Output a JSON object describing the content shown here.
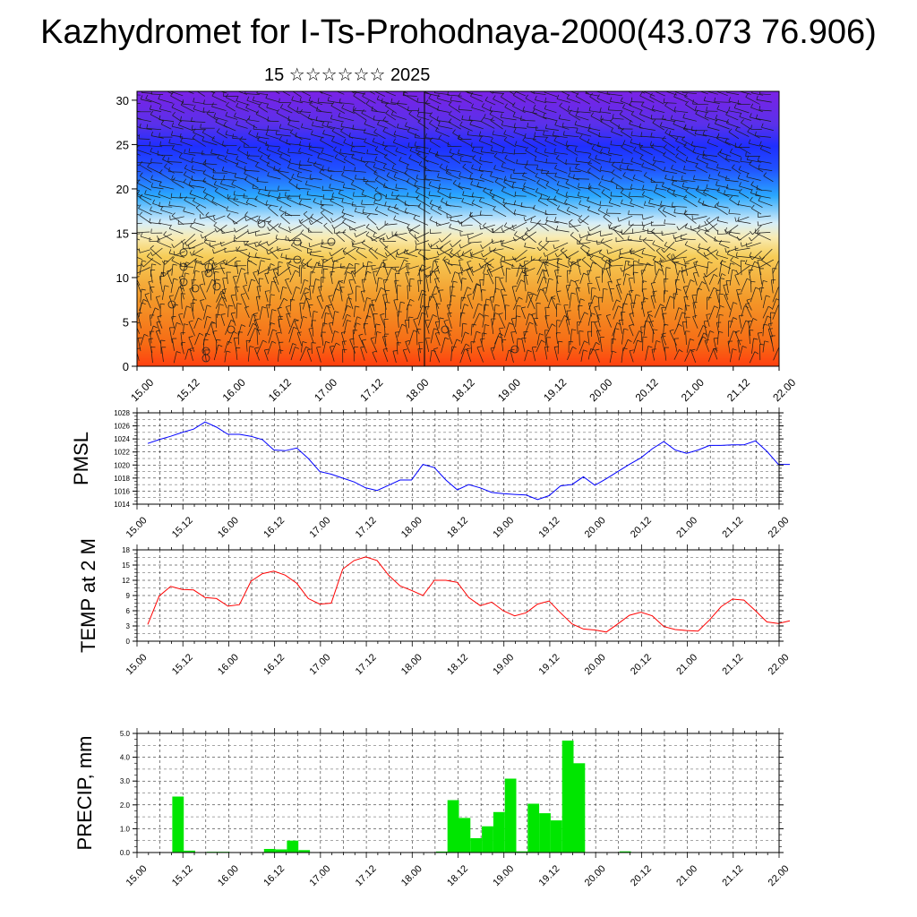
{
  "title": "Kazhydromet for I-Ts-Prohodnaya-2000(43.073 76.906)",
  "subtitle": "15 ☆☆☆☆☆☆ 2025",
  "colors": {
    "pmsl_line": "#0000ff",
    "temp_line": "#ff0000",
    "precip_bar": "#00e600",
    "upper_purple": "#7a22e6",
    "upper_blue": "#1f2fff",
    "mid_cyan": "#2aa8ff",
    "mid_pale": "#f4f0d0",
    "low_yellow": "#f5c94a",
    "low_orange": "#f08a1a",
    "surface_red": "#ff4010"
  },
  "chart_data": [
    {
      "type": "heatmap",
      "name": "vertical-section",
      "x_tick_labels": [
        "15.00",
        "15.12",
        "16.00",
        "16.12",
        "17.00",
        "17.12",
        "18.00",
        "18.12",
        "19.00",
        "19.12",
        "20.00",
        "20.12",
        "21.00",
        "21.12",
        "22.00"
      ],
      "y_tick_labels": [
        "0",
        "5",
        "10",
        "15",
        "20",
        "25",
        "30"
      ],
      "ylim": [
        0,
        31
      ],
      "overlay": "wind barbs",
      "colormap": [
        "#ff4010",
        "#f08a1a",
        "#f5c94a",
        "#f4f0d0",
        "#2aa8ff",
        "#1f2fff",
        "#7a22e6"
      ]
    },
    {
      "type": "line",
      "name": "pmsl",
      "ylabel": "PMSL",
      "ylim": [
        1014,
        1028
      ],
      "y_ticks": [
        "1014",
        "1016",
        "1018",
        "1020",
        "1022",
        "1024",
        "1026",
        "1028"
      ],
      "x_tick_labels": [
        "15.00",
        "15.12",
        "16.00",
        "16.12",
        "17.00",
        "17.12",
        "18.00",
        "18.12",
        "19.00",
        "19.12",
        "20.00",
        "20.12",
        "21.00",
        "21.12",
        "22.00"
      ],
      "grid": true,
      "x": [
        0,
        3,
        6,
        9,
        12,
        15,
        18,
        21,
        24,
        27,
        30,
        33,
        36,
        39,
        42,
        45,
        48,
        51,
        54,
        57,
        60,
        63,
        66,
        69,
        72,
        75,
        78,
        81,
        84,
        87,
        90,
        93,
        96,
        99,
        102,
        105,
        108,
        111,
        114,
        117,
        120,
        123,
        126,
        129,
        132,
        135,
        138,
        141,
        144,
        147,
        150,
        153,
        156,
        159,
        162,
        165,
        168
      ],
      "values": [
        1023.3,
        1023.9,
        1024.4,
        1025.0,
        1025.5,
        1026.6,
        1025.8,
        1024.7,
        1024.7,
        1024.4,
        1023.9,
        1022.3,
        1022.2,
        1022.6,
        1021.0,
        1019.0,
        1018.6,
        1018.0,
        1017.4,
        1016.5,
        1016.1,
        1016.9,
        1017.7,
        1017.7,
        1020.1,
        1019.6,
        1017.7,
        1016.2,
        1017.0,
        1016.5,
        1015.8,
        1015.6,
        1015.5,
        1015.4,
        1014.7,
        1015.3,
        1016.8,
        1017.0,
        1018.2,
        1016.9,
        1017.9,
        1019.0,
        1020.1,
        1021.1,
        1022.5,
        1023.6,
        1022.3,
        1021.8,
        1022.3,
        1023.0,
        1023.0,
        1023.1,
        1023.1,
        1023.7,
        1022.1,
        1020.1,
        1020.1
      ]
    },
    {
      "type": "line",
      "name": "temp",
      "ylabel": "TEMP at 2 M",
      "ylim": [
        0,
        18
      ],
      "y_ticks": [
        "0",
        "3",
        "6",
        "9",
        "12",
        "15",
        "18"
      ],
      "x_tick_labels": [
        "15.00",
        "15.12",
        "16.00",
        "16.12",
        "17.00",
        "17.12",
        "18.00",
        "18.12",
        "19.00",
        "19.12",
        "20.00",
        "20.12",
        "21.00",
        "21.12",
        "22.00"
      ],
      "grid": true,
      "x": [
        0,
        3,
        6,
        9,
        12,
        15,
        18,
        21,
        24,
        27,
        30,
        33,
        36,
        39,
        42,
        45,
        48,
        51,
        54,
        57,
        60,
        63,
        66,
        69,
        72,
        75,
        78,
        81,
        84,
        87,
        90,
        93,
        96,
        99,
        102,
        105,
        108,
        111,
        114,
        117,
        120,
        123,
        126,
        129,
        132,
        135,
        138,
        141,
        144,
        147,
        150,
        153,
        156,
        159,
        162,
        165,
        168
      ],
      "values": [
        3.3,
        8.9,
        10.8,
        10.2,
        10.1,
        8.6,
        8.4,
        6.9,
        7.2,
        11.8,
        13.3,
        13.8,
        13.0,
        11.4,
        8.4,
        7.3,
        7.5,
        14.2,
        15.9,
        16.6,
        15.9,
        13.0,
        10.9,
        10.0,
        9.0,
        12.0,
        12.0,
        11.6,
        8.6,
        7.0,
        7.7,
        6.0,
        5.0,
        5.6,
        7.3,
        7.9,
        5.6,
        3.4,
        2.4,
        2.2,
        1.8,
        3.4,
        5.1,
        5.7,
        5.0,
        2.9,
        2.3,
        2.1,
        2.0,
        4.2,
        6.8,
        8.3,
        8.1,
        6.0,
        3.8,
        3.5,
        4.0
      ]
    },
    {
      "type": "bar",
      "name": "precip",
      "ylabel": "PRECIP, mm",
      "ylim": [
        0,
        5
      ],
      "y_ticks": [
        "0.0",
        "1.0",
        "2.0",
        "3.0",
        "4.0",
        "5.0"
      ],
      "x_tick_labels": [
        "15.00",
        "15.12",
        "16.00",
        "16.12",
        "17.00",
        "17.12",
        "18.00",
        "18.12",
        "19.00",
        "19.12",
        "20.00",
        "20.12",
        "21.00",
        "21.12",
        "22.00"
      ],
      "grid": true,
      "bar_width_hours": 3,
      "x": [
        9,
        12,
        18,
        21,
        33,
        36,
        39,
        42,
        45,
        78,
        81,
        84,
        87,
        90,
        93,
        96,
        99,
        102,
        105,
        108,
        111,
        114,
        117,
        120,
        123,
        126,
        129,
        132,
        135,
        138
      ],
      "values": [
        2.35,
        0.08,
        0.03,
        0.03,
        0.15,
        0.13,
        0.5,
        0.1,
        0.02,
        0.04,
        2.2,
        1.45,
        0.6,
        1.1,
        1.7,
        3.1,
        0.05,
        2.05,
        1.65,
        1.35,
        4.7,
        3.75,
        0.02,
        0.01,
        0.02,
        0.05,
        0.01,
        0.01,
        0.01,
        0.01
      ]
    }
  ]
}
